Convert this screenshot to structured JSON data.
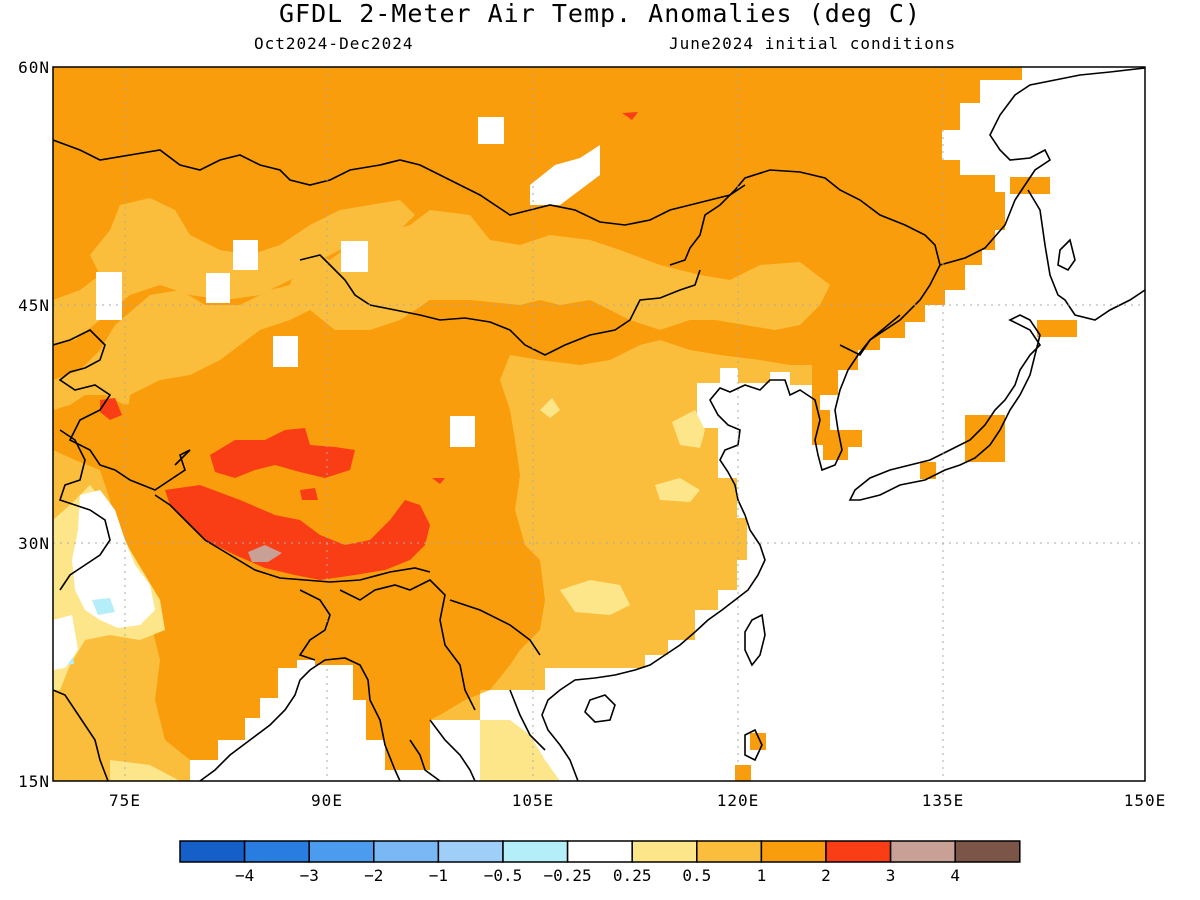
{
  "title": "GFDL 2-Meter Air Temp. Anomalies (deg C)",
  "subtitle_left": "Oct2024-Dec2024",
  "subtitle_right": "June2024 initial conditions",
  "map": {
    "lat_labels": [
      "60N",
      "45N",
      "30N",
      "15N"
    ],
    "lon_labels": [
      "75E",
      "90E",
      "105E",
      "120E",
      "135E",
      "150E"
    ]
  },
  "colorbar": {
    "labels": [
      "-4",
      "-3",
      "-2",
      "-1",
      "-0.5",
      "-0.25",
      "0.25",
      "0.5",
      "1",
      "2",
      "3",
      "4"
    ],
    "colors": [
      "#1560c8",
      "#2a7de0",
      "#4b9bef",
      "#7ab8f5",
      "#9fcff8",
      "#b4eef8",
      "#ffffff",
      "#fde68a",
      "#fbbe3c",
      "#f99d0c",
      "#f93d14",
      "#c8a096",
      "#7a5548"
    ]
  }
}
